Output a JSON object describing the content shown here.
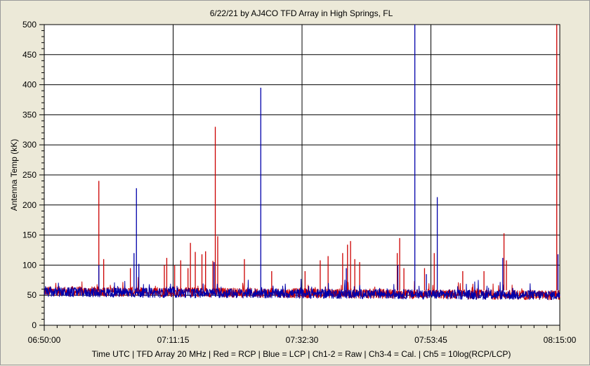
{
  "chart_data": {
    "type": "line",
    "title": "6/22/21  by  AJ4CO TFD Array  in  High Springs, FL",
    "ylabel": "Antenna Temp (kK)",
    "xlabel": "Time UTC | TFD Array 20 MHz | Red = RCP | Blue = LCP | Ch1-2 = Raw | Ch3-4 = Cal. | Ch5 = 10log(RCP/LCP)",
    "x_ticks": [
      "06:50:00",
      "07:11:15",
      "07:32:30",
      "07:53:45",
      "08:15:00"
    ],
    "y_ticks": [
      0,
      50,
      100,
      150,
      200,
      250,
      300,
      350,
      400,
      450,
      500
    ],
    "ylim": [
      0,
      500
    ],
    "xlim_minutes": [
      0,
      85
    ],
    "grid": true,
    "series": [
      {
        "name": "RCP",
        "color": "#cc0000",
        "baseline_start": 57,
        "baseline_end": 50,
        "spikes": [
          {
            "t": 9.0,
            "v": 240
          },
          {
            "t": 9.8,
            "v": 110
          },
          {
            "t": 14.2,
            "v": 95
          },
          {
            "t": 19.8,
            "v": 100
          },
          {
            "t": 20.2,
            "v": 112
          },
          {
            "t": 21.5,
            "v": 100
          },
          {
            "t": 22.5,
            "v": 108
          },
          {
            "t": 23.7,
            "v": 95
          },
          {
            "t": 24.1,
            "v": 137
          },
          {
            "t": 24.9,
            "v": 122
          },
          {
            "t": 26.0,
            "v": 118
          },
          {
            "t": 26.6,
            "v": 123
          },
          {
            "t": 27.8,
            "v": 107
          },
          {
            "t": 28.2,
            "v": 330
          },
          {
            "t": 28.6,
            "v": 148
          },
          {
            "t": 33.0,
            "v": 110
          },
          {
            "t": 37.5,
            "v": 90
          },
          {
            "t": 43.0,
            "v": 90
          },
          {
            "t": 45.5,
            "v": 108
          },
          {
            "t": 46.8,
            "v": 115
          },
          {
            "t": 49.2,
            "v": 120
          },
          {
            "t": 50.0,
            "v": 134
          },
          {
            "t": 50.5,
            "v": 140
          },
          {
            "t": 51.2,
            "v": 110
          },
          {
            "t": 52.0,
            "v": 105
          },
          {
            "t": 58.2,
            "v": 120
          },
          {
            "t": 58.6,
            "v": 145
          },
          {
            "t": 59.3,
            "v": 95
          },
          {
            "t": 62.7,
            "v": 95
          },
          {
            "t": 64.3,
            "v": 120
          },
          {
            "t": 69.0,
            "v": 90
          },
          {
            "t": 72.5,
            "v": 90
          },
          {
            "t": 75.8,
            "v": 153
          },
          {
            "t": 76.2,
            "v": 108
          },
          {
            "t": 84.5,
            "v": 500
          }
        ]
      },
      {
        "name": "LCP",
        "color": "#0000aa",
        "baseline_start": 55,
        "baseline_end": 50,
        "spikes": [
          {
            "t": 9.0,
            "v": 100
          },
          {
            "t": 15.2,
            "v": 228
          },
          {
            "t": 14.8,
            "v": 120
          },
          {
            "t": 15.6,
            "v": 102
          },
          {
            "t": 28.0,
            "v": 105
          },
          {
            "t": 35.7,
            "v": 395
          },
          {
            "t": 49.8,
            "v": 95
          },
          {
            "t": 58.3,
            "v": 100
          },
          {
            "t": 61.1,
            "v": 500
          },
          {
            "t": 63.0,
            "v": 85
          },
          {
            "t": 64.8,
            "v": 213
          },
          {
            "t": 75.6,
            "v": 112
          },
          {
            "t": 84.7,
            "v": 118
          }
        ]
      }
    ]
  }
}
